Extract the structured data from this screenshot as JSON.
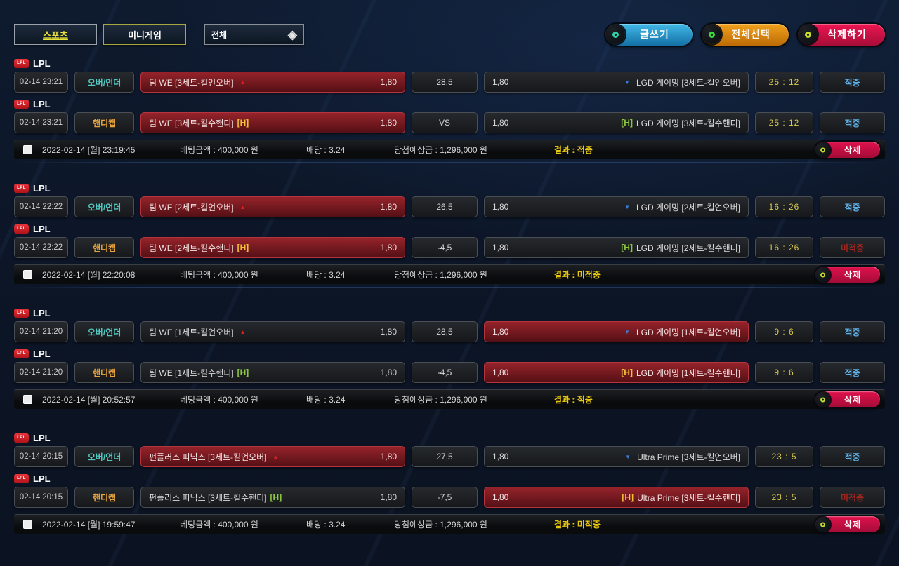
{
  "tabs": [
    {
      "label": "스포츠"
    },
    {
      "label": "미니게임"
    }
  ],
  "filter": {
    "value": "전체"
  },
  "toolbar": {
    "write": "글쓰기",
    "select_all": "전체선택",
    "delete_all": "삭제하기"
  },
  "groups": [
    {
      "rows": [
        {
          "league": "LPL",
          "time": "02-14 23:21",
          "type": "오버/언더",
          "type_class": "ou",
          "home": {
            "text": "팀 WE [3세트-킬언오버]",
            "suffix": "",
            "marker": "up",
            "odds": "1,80",
            "selected": true
          },
          "center": "28,5",
          "away": {
            "marker": "down",
            "prefix": "",
            "text": "LGD 게이밍 [3세트-킬언오버]",
            "odds": "1,80",
            "selected": false
          },
          "score": "25 : 12",
          "result": "적중",
          "result_class": "win"
        },
        {
          "league": "LPL",
          "time": "02-14 23:21",
          "type": "핸디캡",
          "type_class": "hd",
          "home": {
            "text": "팀 WE [3세트-킬수핸디]",
            "suffix": "[H]",
            "marker": "",
            "odds": "1,80",
            "selected": true
          },
          "center": "VS",
          "away": {
            "marker": "",
            "prefix": "[H]",
            "text": "LGD 게이밍 [3세트-킬수핸디]",
            "odds": "1,80",
            "selected": false
          },
          "score": "25 : 12",
          "result": "적중",
          "result_class": "win"
        }
      ],
      "summary": {
        "datetime": "2022-02-14 [월] 23:19:45",
        "bet": "베팅금액 : 400,000 원",
        "odds": "배당 : 3.24",
        "payout": "당첨예상금 : 1,296,000 원",
        "result": "결과 : 적중",
        "delete_label": "삭제"
      }
    },
    {
      "rows": [
        {
          "league": "LPL",
          "time": "02-14 22:22",
          "type": "오버/언더",
          "type_class": "ou",
          "home": {
            "text": "팀 WE [2세트-킬언오버]",
            "suffix": "",
            "marker": "up",
            "odds": "1,80",
            "selected": true
          },
          "center": "26,5",
          "away": {
            "marker": "down",
            "prefix": "",
            "text": "LGD 게이밍 [2세트-킬언오버]",
            "odds": "1,80",
            "selected": false
          },
          "score": "16 : 26",
          "result": "적중",
          "result_class": "win"
        },
        {
          "league": "LPL",
          "time": "02-14 22:22",
          "type": "핸디캡",
          "type_class": "hd",
          "home": {
            "text": "팀 WE [2세트-킬수핸디]",
            "suffix": "[H]",
            "marker": "",
            "odds": "1,80",
            "selected": true
          },
          "center": "-4,5",
          "away": {
            "marker": "",
            "prefix": "[H]",
            "text": "LGD 게이밍 [2세트-킬수핸디]",
            "odds": "1,80",
            "selected": false
          },
          "score": "16 : 26",
          "result": "미적중",
          "result_class": "lose"
        }
      ],
      "summary": {
        "datetime": "2022-02-14 [월] 22:20:08",
        "bet": "베팅금액 : 400,000 원",
        "odds": "배당 : 3.24",
        "payout": "당첨예상금 : 1,296,000 원",
        "result": "결과 : 미적중",
        "delete_label": "삭제"
      }
    },
    {
      "rows": [
        {
          "league": "LPL",
          "time": "02-14 21:20",
          "type": "오버/언더",
          "type_class": "ou",
          "home": {
            "text": "팀 WE [1세트-킬언오버]",
            "suffix": "",
            "marker": "up",
            "odds": "1,80",
            "selected": false
          },
          "center": "28,5",
          "away": {
            "marker": "down",
            "prefix": "",
            "text": "LGD 게이밍 [1세트-킬언오버]",
            "odds": "1,80",
            "selected": true
          },
          "score": "9 : 6",
          "result": "적중",
          "result_class": "win"
        },
        {
          "league": "LPL",
          "time": "02-14 21:20",
          "type": "핸디캡",
          "type_class": "hd",
          "home": {
            "text": "팀 WE [1세트-킬수핸디]",
            "suffix": "[H]",
            "marker": "",
            "odds": "1,80",
            "selected": false
          },
          "center": "-4,5",
          "away": {
            "marker": "",
            "prefix": "[H]",
            "text": "LGD 게이밍 [1세트-킬수핸디]",
            "odds": "1,80",
            "selected": true
          },
          "score": "9 : 6",
          "result": "적중",
          "result_class": "win"
        }
      ],
      "summary": {
        "datetime": "2022-02-14 [월] 20:52:57",
        "bet": "베팅금액 : 400,000 원",
        "odds": "배당 : 3.24",
        "payout": "당첨예상금 : 1,296,000 원",
        "result": "결과 : 적중",
        "delete_label": "삭제"
      }
    },
    {
      "rows": [
        {
          "league": "LPL",
          "time": "02-14 20:15",
          "type": "오버/언더",
          "type_class": "ou",
          "home": {
            "text": "펀플러스 피닉스 [3세트-킬언오버]",
            "suffix": "",
            "marker": "up",
            "odds": "1,80",
            "selected": true
          },
          "center": "27,5",
          "away": {
            "marker": "down",
            "prefix": "",
            "text": "Ultra Prime [3세트-킬언오버]",
            "odds": "1,80",
            "selected": false
          },
          "score": "23 : 5",
          "result": "적중",
          "result_class": "win"
        },
        {
          "league": "LPL",
          "time": "02-14 20:15",
          "type": "핸디캡",
          "type_class": "hd",
          "home": {
            "text": "펀플러스 피닉스 [3세트-킬수핸디]",
            "suffix": "[H]",
            "marker": "",
            "odds": "1,80",
            "selected": false
          },
          "center": "-7,5",
          "away": {
            "marker": "",
            "prefix": "[H]",
            "text": "Ultra Prime [3세트-킬수핸디]",
            "odds": "1,80",
            "selected": true
          },
          "score": "23 : 5",
          "result": "미적중",
          "result_class": "lose"
        }
      ],
      "summary": {
        "datetime": "2022-02-14 [월] 19:59:47",
        "bet": "베팅금액 : 400,000 원",
        "odds": "배당 : 3.24",
        "payout": "당첨예상금 : 1,296,000 원",
        "result": "결과 : 미적중",
        "delete_label": "삭제"
      }
    }
  ]
}
